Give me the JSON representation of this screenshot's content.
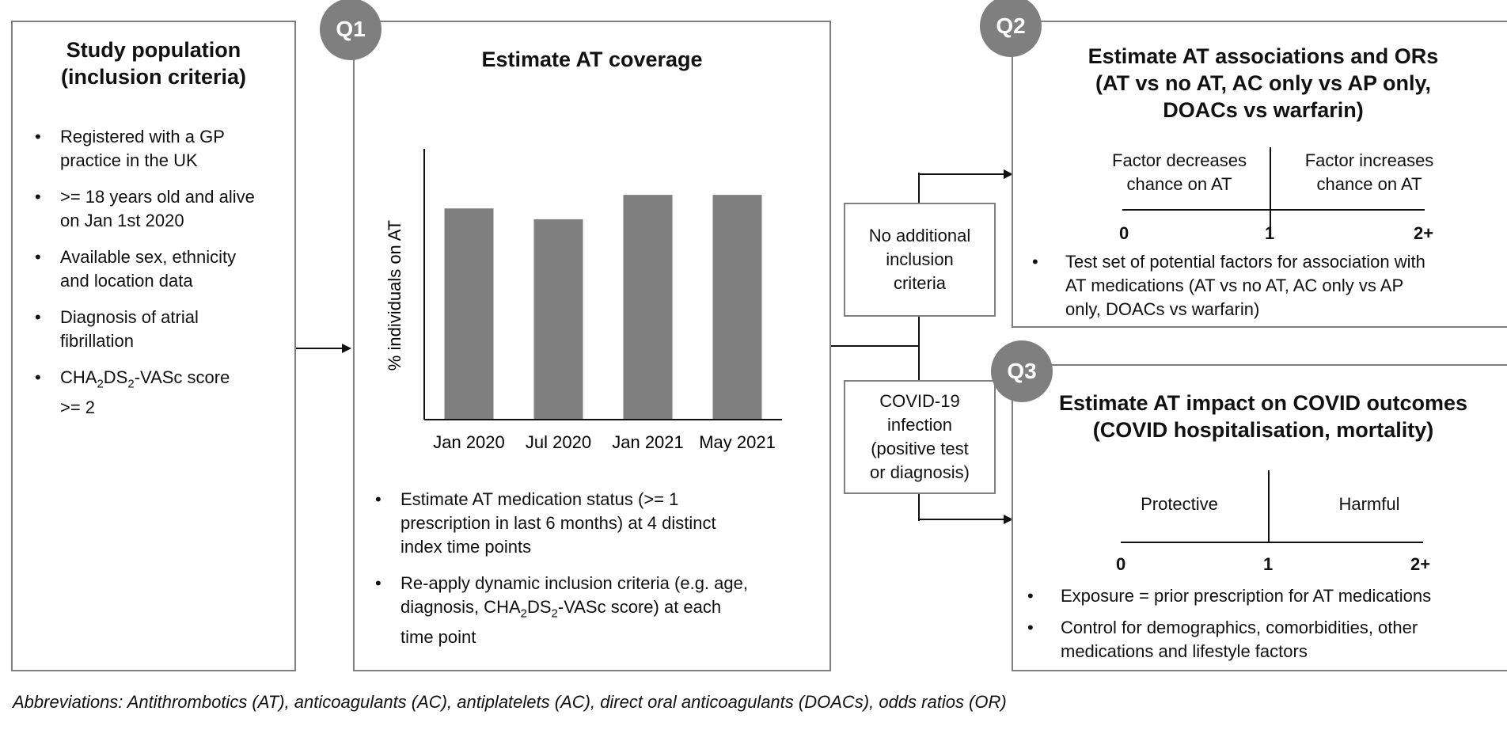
{
  "study_population": {
    "title_line1": "Study population",
    "title_line2": "(inclusion criteria)",
    "items": [
      {
        "lines": [
          "Registered with a GP",
          "practice in the UK"
        ]
      },
      {
        "lines": [
          ">= 18 years old and alive",
          "on Jan 1st 2020"
        ]
      },
      {
        "lines": [
          "Available sex, ethnicity",
          "and location data"
        ]
      },
      {
        "lines": [
          "Diagnosis of atrial",
          "fibrillation"
        ]
      },
      {
        "cha_pre": "CHA",
        "cha_sub1": "2",
        "cha_mid": "DS",
        "cha_sub2": "2",
        "cha_post": "-VASc score",
        "line2": ">= 2"
      }
    ]
  },
  "q1": {
    "badge": "Q1",
    "title": "Estimate AT coverage",
    "bullet1_lines": [
      "Estimate AT medication status (>= 1",
      "prescription in last 6 months) at 4 distinct",
      "index time points"
    ],
    "bullet2_line1": "Re-apply dynamic inclusion criteria (e.g. age,",
    "bullet2_line2_pre": "diagnosis, CHA",
    "bullet2_sub1": "2",
    "bullet2_mid": "DS",
    "bullet2_sub2": "2",
    "bullet2_post": "-VASc score) at each",
    "bullet2_line3": "time point"
  },
  "chart_data": {
    "type": "bar",
    "categories": [
      "Jan 2020",
      "Jul 2020",
      "Jan 2021",
      "May 2021"
    ],
    "values": [
      78,
      74,
      83,
      83
    ],
    "ylabel": "% individuals on AT",
    "xlabel": "",
    "title": "",
    "ylim": [
      0,
      100
    ],
    "bar_color": "#7f7f7f",
    "grid": false
  },
  "connectors": {
    "no_additional": [
      "No additional",
      "inclusion",
      "criteria"
    ],
    "covid_infection": [
      "COVID-19",
      "infection",
      "(positive test",
      "or diagnosis)"
    ]
  },
  "q2": {
    "badge": "Q2",
    "title_lines": [
      "Estimate AT associations and ORs",
      "(AT vs no AT, AC only vs AP only,",
      "DOACs vs warfarin)"
    ],
    "left_label": [
      "Factor decreases",
      "chance on AT"
    ],
    "right_label": [
      "Factor increases",
      "chance on AT"
    ],
    "axis_0": "0",
    "axis_1": "1",
    "axis_2": "2+",
    "bullet_lines": [
      "Test set of potential factors for association with",
      "AT medications (AT vs no AT, AC only vs AP",
      "only, DOACs vs warfarin)"
    ]
  },
  "q3": {
    "badge": "Q3",
    "title_lines": [
      "Estimate AT impact on COVID outcomes",
      "(COVID hospitalisation, mortality)"
    ],
    "left_label": "Protective",
    "right_label": "Harmful",
    "axis_0": "0",
    "axis_1": "1",
    "axis_2": "2+",
    "bullet1": "Exposure = prior prescription for AT medications",
    "bullet2_lines": [
      "Control for demographics, comorbidities, other",
      "medications and lifestyle factors"
    ]
  },
  "abbreviations": "Abbreviations: Antithrombotics (AT), anticoagulants (AC), antiplatelets (AC), direct oral anticoagulants (DOACs), odds ratios (OR)",
  "colors": {
    "box_border": "#7f7f7f",
    "badge": "#7f7f7f",
    "bar": "#7f7f7f"
  }
}
